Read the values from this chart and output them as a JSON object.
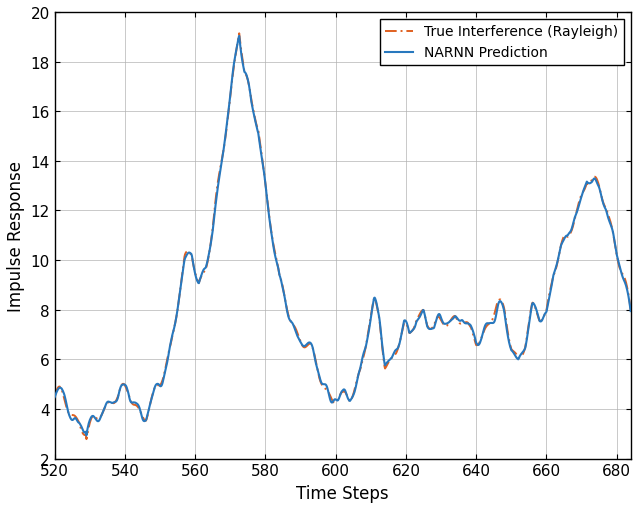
{
  "title": "",
  "xlabel": "Time Steps",
  "ylabel": "Impulse Response",
  "xlim": [
    520,
    684
  ],
  "ylim": [
    2,
    20
  ],
  "xticks": [
    520,
    540,
    560,
    580,
    600,
    620,
    640,
    660,
    680
  ],
  "yticks": [
    2,
    4,
    6,
    8,
    10,
    12,
    14,
    16,
    18,
    20
  ],
  "narnn_color": "#2878be",
  "true_color": "#e06020",
  "narnn_label": "NARNN Prediction",
  "true_label": "True Interference (Rayleigh)",
  "narnn_linewidth": 1.5,
  "true_linewidth": 1.4,
  "grid_color": "#b0b0b0",
  "background_color": "#ffffff",
  "legend_fontsize": 10,
  "axis_fontsize": 12,
  "tick_fontsize": 11
}
